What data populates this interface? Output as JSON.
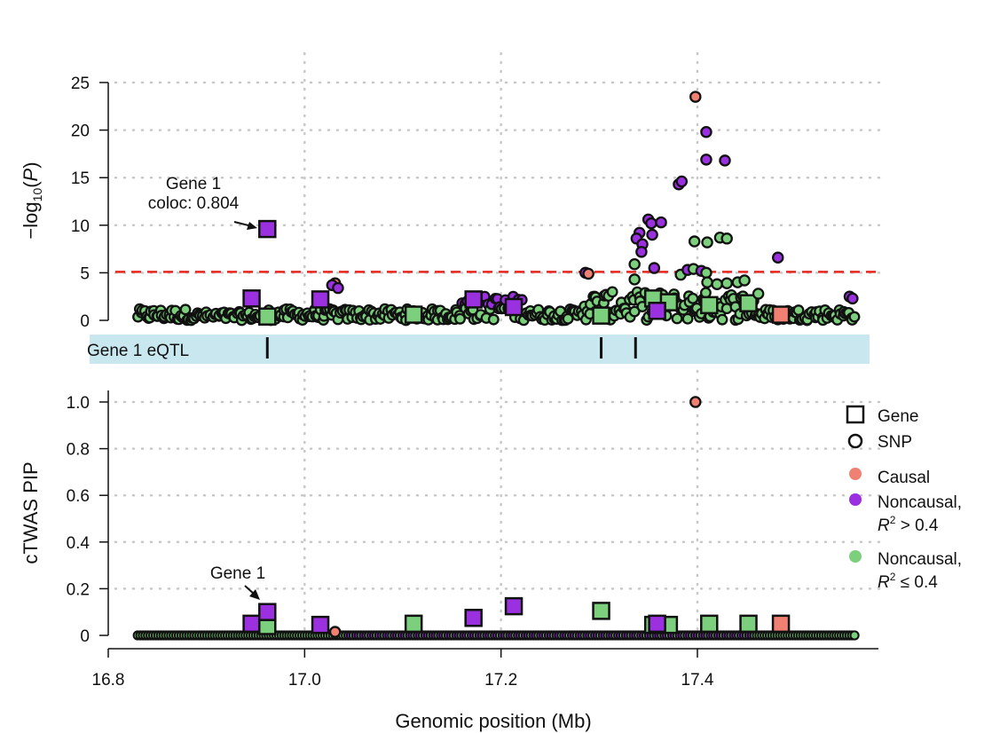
{
  "colors": {
    "causal": "#f08072",
    "noncausal_high": "#9b30e0",
    "noncausal_low": "#7ccf7c",
    "threshold": "#e8251f",
    "eqtl_band": "#c9e7ef",
    "grid": "#c8c8c8"
  },
  "chart_data": [
    {
      "id": "top",
      "type": "scatter",
      "ylabel_parts": {
        "pre": "−log",
        "sub": "10",
        "post": "(",
        "italic": "P",
        "close": ")"
      },
      "xlim": [
        16.8,
        17.6
      ],
      "ylim": [
        0,
        25
      ],
      "yticks": [
        "0",
        "5",
        "10",
        "15",
        "20",
        "25"
      ],
      "ytick_values": [
        0,
        5,
        10,
        15,
        20,
        25
      ],
      "threshold": 5.1,
      "annotation": {
        "line1": "Gene 1",
        "line2": "coloc: 0.804",
        "target": [
          16.96,
          9.6
        ]
      },
      "genes": [
        {
          "x": 16.946,
          "y": 2.3,
          "cls": "purple"
        },
        {
          "x": 16.962,
          "y": 9.6,
          "cls": "purple"
        },
        {
          "x": 16.962,
          "y": 0.4,
          "cls": "green"
        },
        {
          "x": 17.016,
          "y": 2.2,
          "cls": "purple"
        },
        {
          "x": 17.111,
          "y": 0.6,
          "cls": "green"
        },
        {
          "x": 17.172,
          "y": 2.2,
          "cls": "purple"
        },
        {
          "x": 17.213,
          "y": 1.4,
          "cls": "purple"
        },
        {
          "x": 17.302,
          "y": 0.5,
          "cls": "green"
        },
        {
          "x": 17.355,
          "y": 2.3,
          "cls": "green"
        },
        {
          "x": 17.371,
          "y": 1.9,
          "cls": "green"
        },
        {
          "x": 17.359,
          "y": 1.0,
          "cls": "purple"
        },
        {
          "x": 17.412,
          "y": 1.6,
          "cls": "green"
        },
        {
          "x": 17.452,
          "y": 1.8,
          "cls": "green"
        },
        {
          "x": 17.485,
          "y": 0.6,
          "cls": "red"
        }
      ],
      "snps_highlight": [
        {
          "x": 17.398,
          "y": 23.5,
          "cls": "red"
        },
        {
          "x": 17.409,
          "y": 19.8,
          "cls": "purple"
        },
        {
          "x": 17.409,
          "y": 16.9,
          "cls": "purple"
        },
        {
          "x": 17.428,
          "y": 16.8,
          "cls": "purple"
        },
        {
          "x": 17.381,
          "y": 14.3,
          "cls": "purple"
        },
        {
          "x": 17.384,
          "y": 14.6,
          "cls": "purple"
        },
        {
          "x": 17.35,
          "y": 10.6,
          "cls": "purple"
        },
        {
          "x": 17.353,
          "y": 10.2,
          "cls": "purple"
        },
        {
          "x": 17.363,
          "y": 10.3,
          "cls": "purple"
        },
        {
          "x": 17.341,
          "y": 9.2,
          "cls": "purple"
        },
        {
          "x": 17.338,
          "y": 8.6,
          "cls": "purple"
        },
        {
          "x": 17.344,
          "y": 8.0,
          "cls": "purple"
        },
        {
          "x": 17.343,
          "y": 7.2,
          "cls": "purple"
        },
        {
          "x": 17.354,
          "y": 9.0,
          "cls": "purple"
        },
        {
          "x": 17.336,
          "y": 5.9,
          "cls": "green"
        },
        {
          "x": 17.356,
          "y": 5.5,
          "cls": "purple"
        },
        {
          "x": 17.397,
          "y": 8.3,
          "cls": "green"
        },
        {
          "x": 17.41,
          "y": 8.2,
          "cls": "green"
        },
        {
          "x": 17.423,
          "y": 8.7,
          "cls": "green"
        },
        {
          "x": 17.43,
          "y": 8.6,
          "cls": "green"
        },
        {
          "x": 17.383,
          "y": 4.8,
          "cls": "green"
        },
        {
          "x": 17.39,
          "y": 5.3,
          "cls": "purple"
        },
        {
          "x": 17.396,
          "y": 5.4,
          "cls": "green"
        },
        {
          "x": 17.404,
          "y": 5.2,
          "cls": "purple"
        },
        {
          "x": 17.409,
          "y": 5.0,
          "cls": "green"
        },
        {
          "x": 17.482,
          "y": 6.6,
          "cls": "purple"
        },
        {
          "x": 17.286,
          "y": 5.0,
          "cls": "purple"
        },
        {
          "x": 17.289,
          "y": 4.9,
          "cls": "red"
        },
        {
          "x": 17.031,
          "y": 3.9,
          "cls": "red"
        },
        {
          "x": 17.028,
          "y": 3.7,
          "cls": "purple"
        },
        {
          "x": 17.034,
          "y": 3.4,
          "cls": "purple"
        },
        {
          "x": 17.336,
          "y": 4.3,
          "cls": "green"
        },
        {
          "x": 17.41,
          "y": 4.0,
          "cls": "green"
        },
        {
          "x": 17.42,
          "y": 3.8,
          "cls": "green"
        },
        {
          "x": 17.43,
          "y": 3.9,
          "cls": "green"
        },
        {
          "x": 17.441,
          "y": 4.0,
          "cls": "green"
        },
        {
          "x": 17.448,
          "y": 4.2,
          "cls": "green"
        },
        {
          "x": 17.462,
          "y": 2.8,
          "cls": "green"
        },
        {
          "x": 17.555,
          "y": 2.5,
          "cls": "purple"
        },
        {
          "x": 17.558,
          "y": 2.3,
          "cls": "purple"
        }
      ]
    },
    {
      "id": "bottom",
      "type": "scatter",
      "ylabel": "cTWAS PIP",
      "xlim": [
        16.8,
        17.6
      ],
      "ylim": [
        0,
        1.0
      ],
      "yticks": [
        "0",
        "0.2",
        "0.4",
        "0.6",
        "0.8",
        "1.0"
      ],
      "ytick_values": [
        0,
        0.2,
        0.4,
        0.6,
        0.8,
        1.0
      ],
      "annotation": {
        "line1": "Gene 1",
        "target": [
          16.962,
          0.1
        ]
      },
      "genes": [
        {
          "x": 16.946,
          "y": 0.05,
          "cls": "purple"
        },
        {
          "x": 16.962,
          "y": 0.04,
          "cls": "green"
        },
        {
          "x": 16.962,
          "y": 0.1,
          "cls": "purple"
        },
        {
          "x": 17.016,
          "y": 0.045,
          "cls": "purple"
        },
        {
          "x": 17.111,
          "y": 0.05,
          "cls": "green"
        },
        {
          "x": 17.172,
          "y": 0.075,
          "cls": "purple"
        },
        {
          "x": 17.213,
          "y": 0.125,
          "cls": "purple"
        },
        {
          "x": 17.302,
          "y": 0.105,
          "cls": "green"
        },
        {
          "x": 17.355,
          "y": 0.045,
          "cls": "green"
        },
        {
          "x": 17.371,
          "y": 0.045,
          "cls": "green"
        },
        {
          "x": 17.359,
          "y": 0.05,
          "cls": "purple"
        },
        {
          "x": 17.412,
          "y": 0.05,
          "cls": "green"
        },
        {
          "x": 17.452,
          "y": 0.05,
          "cls": "green"
        },
        {
          "x": 17.485,
          "y": 0.05,
          "cls": "red"
        }
      ],
      "snps_highlight": [
        {
          "x": 17.398,
          "y": 1.0,
          "cls": "red"
        },
        {
          "x": 17.031,
          "y": 0.015,
          "cls": "red"
        }
      ]
    }
  ],
  "eqtl": {
    "label": "Gene 1 eQTL",
    "positions": [
      16.962,
      17.302,
      17.337
    ]
  },
  "xaxis": {
    "label": "Genomic position (Mb)",
    "ticks": [
      "16.8",
      "17.0",
      "17.2",
      "17.4"
    ],
    "tick_values": [
      16.8,
      17.0,
      17.2,
      17.4
    ]
  },
  "legend": {
    "gene": "Gene",
    "snp": "SNP",
    "causal": "Causal",
    "noncausal_high_l1": "Noncausal,",
    "noncausal_high_l2": "> 0.4",
    "noncausal_low_l1": "Noncausal,",
    "noncausal_low_l2": "≤ 0.4",
    "r2_R": "R",
    "r2_sup": "2"
  },
  "snp_background": {
    "x_range": [
      16.83,
      17.56
    ],
    "top_baseline_max": 1.2,
    "bottom_value": 0.0
  }
}
